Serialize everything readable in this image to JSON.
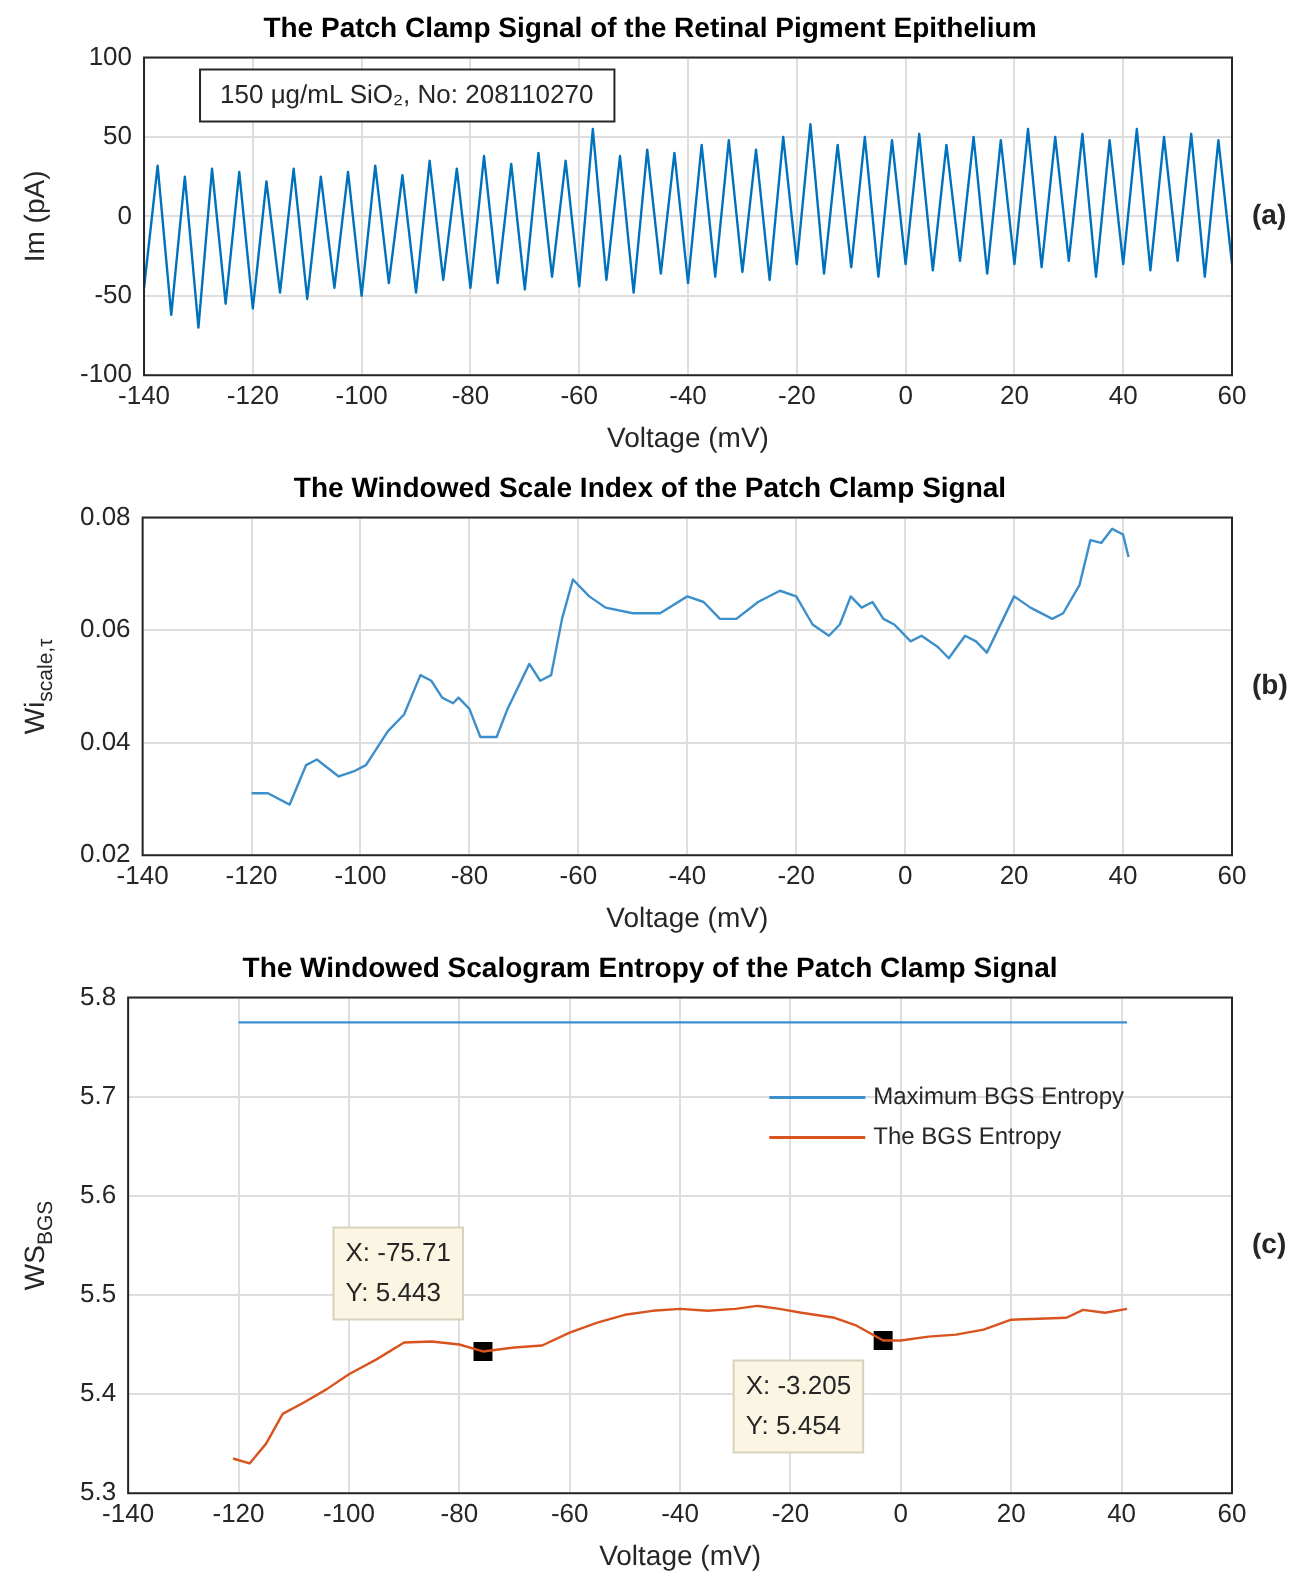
{
  "chart_data": [
    {
      "type": "line",
      "title": "The Patch Clamp Signal of the Retinal Pigment Epithelium",
      "xlabel": "Voltage (mV)",
      "ylabel": "Im (pA)",
      "annotations": [
        "150 μg/mL SiO₂, No: 208110270",
        "(a)"
      ],
      "x": [
        -140,
        -137.5,
        -135,
        -132.5,
        -130,
        -127.5,
        -125,
        -122.5,
        -120,
        -117.5,
        -115,
        -112.5,
        -110,
        -107.5,
        -105,
        -102.5,
        -100,
        -97.5,
        -95,
        -92.5,
        -90,
        -87.5,
        -85,
        -82.5,
        -80,
        -77.5,
        -75,
        -72.5,
        -70,
        -67.5,
        -65,
        -62.5,
        -60,
        -57.5,
        -55,
        -52.5,
        -50,
        -47.5,
        -45,
        -42.5,
        -40,
        -37.5,
        -35,
        -32.5,
        -30,
        -27.5,
        -25,
        -22.5,
        -20,
        -17.5,
        -15,
        -12.5,
        -10,
        -7.5,
        -5,
        -2.5,
        0,
        2.5,
        5,
        7.5,
        10,
        12.5,
        15,
        17.5,
        20,
        22.5,
        25,
        27.5,
        30,
        32.5,
        35,
        37.5,
        40,
        42.5,
        45,
        47.5,
        50,
        52.5,
        55,
        57.5,
        60
      ],
      "series": [
        {
          "color": "#0072bd",
          "values": [
            -45,
            32,
            -62,
            25,
            -70,
            30,
            -55,
            28,
            -58,
            22,
            -48,
            30,
            -52,
            25,
            -45,
            28,
            -50,
            32,
            -42,
            26,
            -48,
            35,
            -40,
            30,
            -45,
            38,
            -42,
            33,
            -46,
            40,
            -38,
            35,
            -44,
            55,
            -40,
            38,
            -48,
            42,
            -36,
            40,
            -42,
            45,
            -38,
            48,
            -35,
            42,
            -40,
            50,
            -30,
            58,
            -36,
            45,
            -32,
            50,
            -38,
            48,
            -30,
            52,
            -34,
            45,
            -28,
            50,
            -36,
            48,
            -30,
            55,
            -32,
            50,
            -28,
            52,
            -38,
            48,
            -30,
            55,
            -34,
            50,
            -28,
            52,
            -38,
            48,
            -30
          ]
        }
      ],
      "xlim": [
        -140,
        60
      ],
      "xticks": [
        -140,
        -120,
        -100,
        -80,
        -60,
        -40,
        -20,
        0,
        20,
        40,
        60
      ],
      "ylim": [
        -100,
        100
      ],
      "yticks": [
        -100,
        -50,
        0,
        50,
        100
      ],
      "grid": true,
      "legend": false,
      "marker": "none"
    },
    {
      "type": "line",
      "title": "The Windowed Scale Index of the Patch Clamp Signal",
      "xlabel": "Voltage (mV)",
      "ylabel": "Wi$_{scale,τ}$",
      "annotations": [
        "(b)"
      ],
      "x": [
        -120,
        -117,
        -113,
        -110,
        -108,
        -104,
        -101,
        -99,
        -95,
        -92,
        -89,
        -87,
        -85,
        -83,
        -82,
        -80,
        -78,
        -75,
        -73,
        -71,
        -69,
        -67,
        -65,
        -63,
        -61,
        -58,
        -55,
        -50,
        -45,
        -40,
        -37,
        -34,
        -31,
        -27,
        -23,
        -20,
        -17,
        -14,
        -12,
        -10,
        -8,
        -6,
        -4,
        -2,
        1,
        3,
        6,
        8,
        11,
        13,
        15,
        18,
        20,
        23,
        27,
        29,
        32,
        34,
        36,
        38,
        40,
        41
      ],
      "series": [
        {
          "color": "#3d8fcc",
          "values": [
            0.031,
            0.031,
            0.029,
            0.036,
            0.037,
            0.034,
            0.035,
            0.036,
            0.042,
            0.045,
            0.052,
            0.051,
            0.048,
            0.047,
            0.048,
            0.046,
            0.041,
            0.041,
            0.046,
            0.05,
            0.054,
            0.051,
            0.052,
            0.062,
            0.069,
            0.066,
            0.064,
            0.063,
            0.063,
            0.066,
            0.065,
            0.062,
            0.062,
            0.065,
            0.067,
            0.066,
            0.061,
            0.059,
            0.061,
            0.066,
            0.064,
            0.065,
            0.062,
            0.061,
            0.058,
            0.059,
            0.057,
            0.055,
            0.059,
            0.058,
            0.056,
            0.062,
            0.066,
            0.064,
            0.062,
            0.063,
            0.068,
            0.076,
            0.0755,
            0.078,
            0.077,
            0.073
          ]
        }
      ],
      "xlim": [
        -140,
        60
      ],
      "xticks": [
        -140,
        -120,
        -100,
        -80,
        -60,
        -40,
        -20,
        0,
        20,
        40,
        60
      ],
      "ylim": [
        0.02,
        0.08
      ],
      "yticks": [
        0.02,
        0.04,
        0.06,
        0.08
      ],
      "grid": true,
      "legend": false,
      "marker": "none"
    },
    {
      "type": "line",
      "title": "The Windowed Scalogram Entropy of the Patch Clamp Signal",
      "xlabel": "Voltage (mV)",
      "ylabel": "WS$_{BGS}$",
      "annotations": [
        "(c)",
        {
          "text": "X: -75.71\nY: 5.443",
          "x": -75.71,
          "y": 5.443
        },
        {
          "text": "X: -3.205\nY: 5.454",
          "x": -3.205,
          "y": 5.454
        }
      ],
      "series": [
        {
          "name": "Maximum BGS Entropy",
          "color": "#3d8fcc",
          "x": [
            -120,
            41
          ],
          "values": [
            5.775,
            5.775
          ]
        },
        {
          "name": "The BGS Entropy",
          "color": "#d9531e",
          "x": [
            -121,
            -118,
            -115,
            -112,
            -108,
            -104,
            -100,
            -95,
            -90,
            -85,
            -80,
            -75.71,
            -70,
            -65,
            -60,
            -55,
            -50,
            -45,
            -40,
            -35,
            -30,
            -26,
            -22,
            -18,
            -12,
            -8,
            -3.205,
            0,
            5,
            10,
            15,
            20,
            25,
            30,
            33,
            37,
            41
          ],
          "values": [
            5.335,
            5.33,
            5.35,
            5.38,
            5.392,
            5.405,
            5.42,
            5.435,
            5.452,
            5.453,
            5.45,
            5.443,
            5.447,
            5.449,
            5.462,
            5.472,
            5.48,
            5.484,
            5.486,
            5.484,
            5.486,
            5.489,
            5.486,
            5.482,
            5.477,
            5.469,
            5.454,
            5.454,
            5.458,
            5.46,
            5.465,
            5.475,
            5.476,
            5.477,
            5.485,
            5.482,
            5.486
          ]
        },
        {
          "type": "scatter",
          "marker": "square",
          "color": "#000000",
          "x": [
            -75.71,
            -3.205
          ],
          "values": [
            5.443,
            5.454
          ]
        }
      ],
      "xlim": [
        -140,
        60
      ],
      "xticks": [
        -140,
        -120,
        -100,
        -80,
        -60,
        -40,
        -20,
        0,
        20,
        40,
        60
      ],
      "ylim": [
        5.3,
        5.8
      ],
      "yticks": [
        5.3,
        5.4,
        5.5,
        5.6,
        5.7,
        5.8
      ],
      "grid": true,
      "legend": "top right",
      "marker": "none"
    }
  ]
}
